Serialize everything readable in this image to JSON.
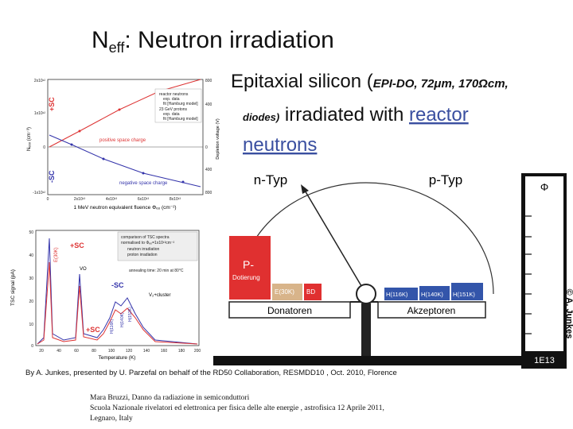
{
  "slide": {
    "title": {
      "n": "N",
      "sub": "eff",
      "rest": ": Neutron irradiation"
    },
    "subtitle": {
      "lead": "Epitaxial silicon (",
      "detail": "EPI-DO, 72μm, 170Ωcm,",
      "detail2": "diodes)",
      "mid": " irradiated with ",
      "link1": "reactor",
      "link2": "neutrons"
    },
    "plot1": {
      "y_label": "Nₑₒₒ (cm⁻³)",
      "y2_label": "Depletion voltage (V)",
      "x_label": "1 MeV neutron equivalent fluence Φₑₒ (cm⁻²)",
      "yticks": [
        "2x10¹²",
        "1x10¹²",
        "0",
        "-1x10¹²"
      ],
      "y2ticks": [
        "800",
        "400",
        "0",
        "400",
        "800"
      ],
      "xticks": [
        "0",
        "2x10¹³",
        "4x10¹³",
        "6x10¹³",
        "8x10¹³"
      ],
      "plus_sc": "+SC",
      "minus_sc": "-SC",
      "positive": "positive space charge",
      "negative": "negative space charge",
      "legend": [
        "reactor neutrons",
        "exp. data",
        "fit [Hamburg model]",
        "23 GeV protons",
        "exp. data",
        "fit [Hamburg model]"
      ]
    },
    "plot2": {
      "y_label": "TSC signal (pA)",
      "x_label": "Temperature (K)",
      "yticks": [
        "50",
        "40",
        "30",
        "20",
        "10",
        "0"
      ],
      "xticks": [
        "20",
        "40",
        "60",
        "80",
        "100",
        "120",
        "140",
        "160",
        "180",
        "200"
      ],
      "box": [
        "comparison of TSC spectra",
        "normalised to Φₑₒ=1x10¹³cm⁻²",
        "neutron irradiation",
        "proton irradiation"
      ],
      "anneal": "annealing time: 20 min at 80°C",
      "labels": {
        "plus1": "+SC",
        "e30": "E(30K)",
        "minus": "-SC",
        "vo": "VO",
        "v2": "V₂+cluster",
        "h116": "H(116K)",
        "h140": "H(140K)",
        "h152": "H(152K)",
        "plus2": "+SC"
      }
    },
    "diagram": {
      "n_typ": "n-Typ",
      "p_typ": "p-Typ",
      "p_minus": "P-",
      "dotierung": "Dotierung",
      "e30": "E(30K)",
      "bd": "BD",
      "h116": "H(116K)",
      "h140": "H(140K)",
      "h151": "H(151K)",
      "donatoren": "Donatoren",
      "akzeptoren": "Akzeptoren",
      "phi": "Φ",
      "fluence": "1E13",
      "copyright": "© A. Junkes"
    },
    "caption": "By A. Junkes, presented by U. Parzefal on behalf of the RD50 Collaboration, RESMDD10 , Oct. 2010, Florence",
    "footer": [
      "Mara Bruzzi, Danno da radiazione in semiconduttori",
      "Scuola Nazionale rivelatori ed elettronica per fisica delle alte energie , astrofisica 12 Aprile  2011,",
      "Legnaro, Italy"
    ]
  }
}
